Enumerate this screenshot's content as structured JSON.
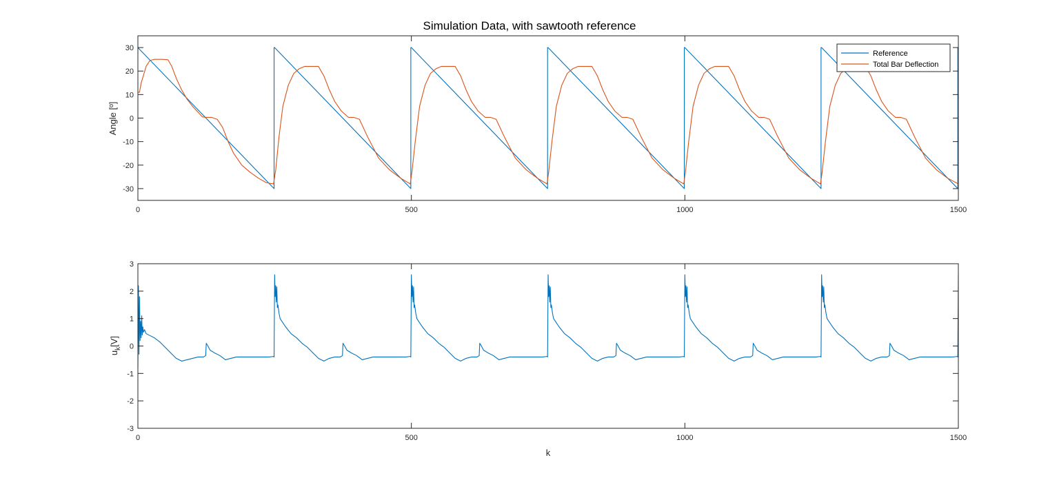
{
  "chart_data": [
    {
      "type": "line",
      "title": "Simulation Data, with sawtooth reference",
      "xlabel": "",
      "ylabel": "Angle [º]",
      "xlim": [
        0,
        1500
      ],
      "ylim": [
        -35,
        35
      ],
      "xticks": [
        0,
        500,
        1000,
        1500
      ],
      "yticks": [
        -30,
        -20,
        -10,
        0,
        10,
        20,
        30
      ],
      "grid": false,
      "legend": "top-right",
      "series": [
        {
          "name": "Reference",
          "color": "#0072BD",
          "x": [
            0,
            249,
            249,
            250,
            499,
            499,
            500,
            749,
            749,
            750,
            999,
            999,
            1000,
            1249,
            1249,
            1250,
            1499,
            1499,
            1500
          ],
          "y": [
            30,
            -30,
            30,
            30,
            -30,
            30,
            30,
            -30,
            30,
            30,
            -30,
            30,
            30,
            -30,
            30,
            30,
            -30,
            30,
            30
          ]
        },
        {
          "name": "Total Bar Deflection",
          "color": "#D95319",
          "x": [
            0,
            3,
            6,
            10,
            15,
            22,
            30,
            45,
            55,
            62,
            70,
            80,
            90,
            100,
            110,
            118,
            125,
            135,
            145,
            155,
            165,
            175,
            190,
            205,
            220,
            235,
            248,
            252,
            258,
            265,
            275,
            285,
            295,
            305,
            320,
            330,
            340,
            350,
            360,
            372,
            385,
            395,
            405,
            420,
            440,
            460,
            480,
            498,
            501,
            507,
            515,
            525,
            535,
            545,
            555,
            570,
            580,
            590,
            600,
            610,
            622,
            635,
            645,
            655,
            670,
            690,
            710,
            730,
            748,
            751,
            757,
            765,
            775,
            785,
            795,
            805,
            820,
            830,
            840,
            850,
            860,
            872,
            885,
            895,
            905,
            920,
            940,
            960,
            980,
            998,
            1001,
            1007,
            1015,
            1025,
            1035,
            1045,
            1055,
            1070,
            1080,
            1090,
            1100,
            1110,
            1122,
            1135,
            1145,
            1155,
            1170,
            1190,
            1210,
            1230,
            1248,
            1251,
            1257,
            1265,
            1275,
            1285,
            1295,
            1305,
            1320,
            1330,
            1340,
            1350,
            1360,
            1372,
            1385,
            1395,
            1405,
            1420,
            1440,
            1460,
            1480,
            1500
          ],
          "y": [
            11,
            11,
            15,
            18,
            22,
            24.5,
            25,
            25,
            24.8,
            22,
            17,
            12,
            8,
            5,
            2.5,
            0.5,
            0.3,
            0.3,
            -0.5,
            -4,
            -10,
            -15,
            -20,
            -23,
            -25.5,
            -27.5,
            -28,
            -22,
            -8,
            5,
            14,
            19,
            21,
            22,
            22,
            22,
            18,
            12,
            7,
            3,
            0.3,
            0.3,
            -0.5,
            -8,
            -17,
            -22,
            -25.5,
            -28,
            -23,
            -10,
            5,
            14,
            19,
            21,
            22,
            22,
            22,
            18,
            12,
            7,
            3,
            0.3,
            0.3,
            -0.5,
            -8,
            -17,
            -22,
            -25.5,
            -28,
            -23,
            -10,
            5,
            14,
            19,
            21,
            22,
            22,
            22,
            18,
            12,
            7,
            3,
            0.3,
            0.3,
            -0.5,
            -8,
            -17,
            -22,
            -25.5,
            -28,
            -23,
            -10,
            5,
            14,
            19,
            21,
            22,
            22,
            22,
            18,
            12,
            7,
            3,
            0.3,
            0.3,
            -0.5,
            -8,
            -17,
            -22,
            -25.5,
            -28,
            -23,
            -10,
            5,
            14,
            19,
            21,
            22,
            22,
            22,
            18,
            12,
            7,
            3,
            0.3,
            0.3,
            -0.5,
            -8,
            -17,
            -22,
            -25.5,
            -28
          ]
        }
      ]
    },
    {
      "type": "line",
      "title": "",
      "xlabel": "k",
      "ylabel": "u",
      "ylabel_sub": "k",
      "ylabel_unit": "[V]",
      "xlim": [
        0,
        1500
      ],
      "ylim": [
        -3,
        3
      ],
      "xticks": [
        0,
        500,
        1000,
        1500
      ],
      "yticks": [
        -3,
        -2,
        -1,
        0,
        1,
        2,
        3
      ],
      "grid": false,
      "series": [
        {
          "name": "",
          "color": "#0072BD",
          "x": [
            0,
            1,
            2,
            3,
            4,
            5,
            6,
            7,
            8,
            9,
            10,
            12,
            15,
            20,
            30,
            40,
            50,
            60,
            70,
            80,
            90,
            100,
            110,
            120,
            124,
            125,
            128,
            132,
            140,
            150,
            160,
            170,
            180,
            200,
            220,
            240,
            248,
            249,
            250,
            251,
            252,
            253,
            254,
            255,
            256,
            258,
            260,
            265,
            270,
            280,
            290,
            300,
            310,
            320,
            330,
            340,
            350,
            360,
            370,
            374,
            375,
            378,
            382,
            390,
            400,
            410,
            420,
            430,
            450,
            470,
            490,
            498,
            499,
            500,
            501,
            502,
            503,
            504,
            505,
            506,
            508,
            510,
            515,
            520,
            530,
            540,
            550,
            560,
            570,
            580,
            590,
            600,
            610,
            620,
            624,
            625,
            628,
            632,
            640,
            650,
            660,
            670,
            680,
            700,
            720,
            740,
            748,
            749,
            750,
            751,
            752,
            753,
            754,
            755,
            756,
            758,
            760,
            765,
            770,
            780,
            790,
            800,
            810,
            820,
            830,
            840,
            850,
            860,
            870,
            874,
            875,
            878,
            882,
            890,
            900,
            910,
            920,
            930,
            950,
            970,
            990,
            998,
            999,
            1000,
            1001,
            1002,
            1003,
            1004,
            1005,
            1006,
            1008,
            1010,
            1015,
            1020,
            1030,
            1040,
            1050,
            1060,
            1070,
            1080,
            1090,
            1100,
            1110,
            1120,
            1124,
            1125,
            1128,
            1132,
            1140,
            1150,
            1160,
            1170,
            1180,
            1200,
            1220,
            1240,
            1248,
            1249,
            1250,
            1251,
            1252,
            1253,
            1254,
            1255,
            1256,
            1258,
            1260,
            1265,
            1270,
            1280,
            1290,
            1300,
            1310,
            1320,
            1330,
            1340,
            1350,
            1360,
            1370,
            1374,
            1375,
            1378,
            1382,
            1390,
            1400,
            1410,
            1420,
            1430,
            1450,
            1470,
            1490,
            1498,
            1499,
            1500
          ],
          "y": [
            -0.8,
            2.2,
            -0.3,
            1.8,
            0.2,
            0.9,
            0.3,
            1.1,
            0.4,
            0.7,
            0.5,
            0.6,
            0.45,
            0.4,
            0.3,
            0.15,
            -0.05,
            -0.25,
            -0.45,
            -0.55,
            -0.5,
            -0.45,
            -0.4,
            -0.4,
            -0.35,
            0.1,
            0,
            -0.15,
            -0.25,
            -0.35,
            -0.5,
            -0.45,
            -0.4,
            -0.4,
            -0.4,
            -0.4,
            -0.38,
            -0.4,
            2.6,
            1.8,
            2.2,
            1.6,
            2.15,
            1.4,
            1.5,
            1.2,
            1.0,
            0.85,
            0.7,
            0.45,
            0.3,
            0.1,
            -0.05,
            -0.25,
            -0.45,
            -0.55,
            -0.45,
            -0.4,
            -0.4,
            -0.35,
            0.1,
            0,
            -0.15,
            -0.25,
            -0.35,
            -0.5,
            -0.45,
            -0.4,
            -0.4,
            -0.4,
            -0.4,
            -0.38,
            -0.4,
            2.6,
            1.8,
            2.2,
            1.6,
            2.15,
            1.4,
            1.5,
            1.2,
            1.0,
            0.85,
            0.7,
            0.45,
            0.3,
            0.1,
            -0.05,
            -0.25,
            -0.45,
            -0.55,
            -0.45,
            -0.4,
            -0.4,
            -0.35,
            0.1,
            0,
            -0.15,
            -0.25,
            -0.35,
            -0.5,
            -0.45,
            -0.4,
            -0.4,
            -0.4,
            -0.4,
            -0.38,
            -0.4,
            2.6,
            1.8,
            2.2,
            1.6,
            2.15,
            1.4,
            1.5,
            1.2,
            1.0,
            0.85,
            0.7,
            0.45,
            0.3,
            0.1,
            -0.05,
            -0.25,
            -0.45,
            -0.55,
            -0.45,
            -0.4,
            -0.4,
            -0.35,
            0.1,
            0,
            -0.15,
            -0.25,
            -0.35,
            -0.5,
            -0.45,
            -0.4,
            -0.4,
            -0.4,
            -0.4,
            -0.38,
            -0.4,
            2.6,
            1.8,
            2.2,
            1.6,
            2.15,
            1.4,
            1.5,
            1.2,
            1.0,
            0.85,
            0.7,
            0.45,
            0.3,
            0.1,
            -0.05,
            -0.25,
            -0.45,
            -0.55,
            -0.45,
            -0.4,
            -0.4,
            -0.35,
            0.1,
            0,
            -0.15,
            -0.25,
            -0.35,
            -0.5,
            -0.45,
            -0.4,
            -0.4,
            -0.4,
            -0.4,
            -0.38,
            -0.4,
            2.6,
            1.8,
            2.2,
            1.6,
            2.15,
            1.4,
            1.5,
            1.2,
            1.0,
            0.85,
            0.7,
            0.45,
            0.3,
            0.1,
            -0.05,
            -0.25,
            -0.45,
            -0.55,
            -0.45,
            -0.4,
            -0.4,
            -0.35,
            0.1,
            0,
            -0.15,
            -0.25,
            -0.35,
            -0.5,
            -0.45,
            -0.4,
            -0.4,
            -0.4,
            -0.4,
            -0.38,
            -0.4,
            2.6
          ]
        }
      ]
    }
  ]
}
